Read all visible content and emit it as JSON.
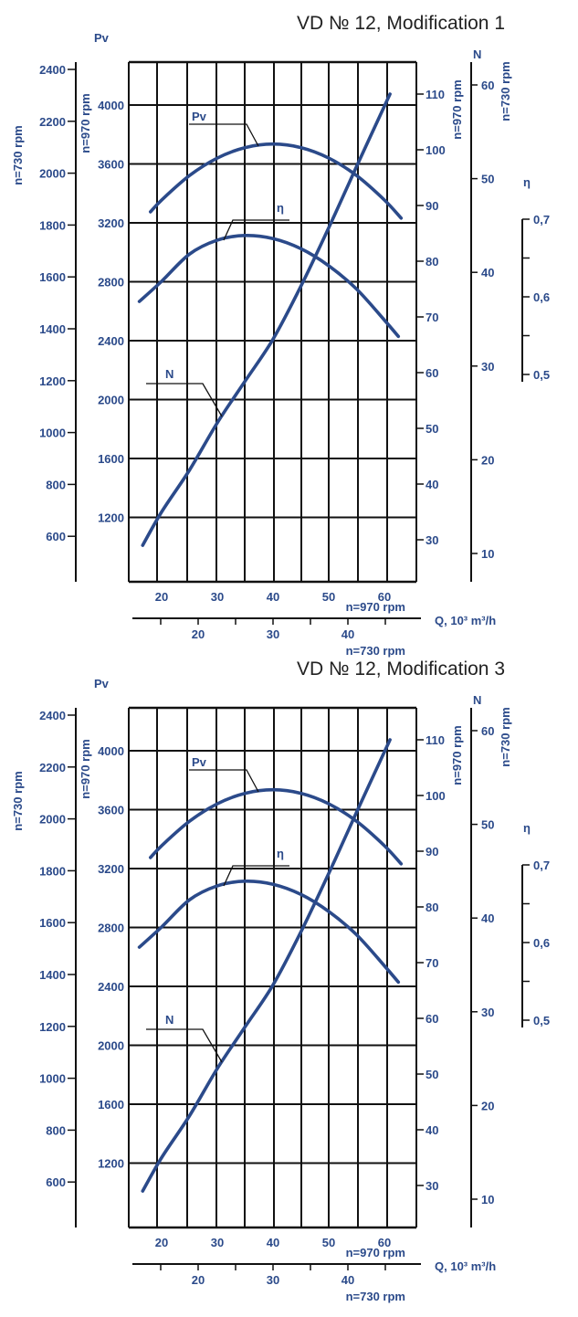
{
  "colors": {
    "curve": "#2b4a8a",
    "grid": "#111111",
    "label": "#2b4a8a"
  },
  "chart_data": [
    {
      "type": "line",
      "title": "VD  № 12, Modification 1",
      "xlabel": "Q, 10³ m³/h",
      "x_axes": [
        {
          "name": "n=970 rpm",
          "ticks": [
            20,
            30,
            40,
            50,
            60
          ]
        },
        {
          "name": "n=730 rpm",
          "ticks": [
            20,
            30,
            40
          ]
        }
      ],
      "y_axes": {
        "pv_730": {
          "label": "n=730 rpm",
          "title": "Pv",
          "ticks": [
            2400,
            2200,
            2000,
            1800,
            1600,
            1400,
            1200,
            1000,
            800,
            600
          ]
        },
        "pv_970": {
          "label": "n=970 rpm",
          "ticks": [
            4000,
            3600,
            3200,
            2800,
            2400,
            2000,
            1600,
            1200
          ]
        },
        "n_970": {
          "label": "n=970 rpm",
          "ticks": [
            110,
            100,
            90,
            80,
            70,
            60,
            50,
            40,
            30
          ]
        },
        "n_730": {
          "label": "n=730 rpm",
          "title": "N",
          "ticks": [
            60,
            50,
            40,
            30,
            20,
            10
          ]
        },
        "eta": {
          "title": "η",
          "ticks": [
            "0,7",
            "0,6",
            "0,5"
          ],
          "range": [
            0.5,
            0.7
          ]
        }
      },
      "series": [
        {
          "name": "Pv",
          "axis": "pv_970",
          "x": [
            18,
            20,
            25,
            30,
            35,
            40,
            45,
            50,
            55,
            60,
            63
          ],
          "values": [
            3275,
            3355,
            3521,
            3640,
            3711,
            3735,
            3711,
            3640,
            3521,
            3355,
            3232
          ]
        },
        {
          "name": "η",
          "axis": "eta",
          "x": [
            16,
            20,
            25,
            30,
            35,
            40,
            45,
            50,
            55,
            60,
            62.5
          ],
          "values": [
            0.594,
            0.62,
            0.655,
            0.673,
            0.679,
            0.675,
            0.662,
            0.64,
            0.61,
            0.57,
            0.549
          ]
        },
        {
          "name": "N",
          "axis": "n_970",
          "x": [
            16.6,
            20,
            25,
            30,
            35,
            40,
            45,
            50,
            55,
            61
          ],
          "values": [
            29,
            35,
            42.5,
            51,
            58.5,
            66,
            75.5,
            86,
            97,
            110
          ]
        }
      ]
    },
    {
      "type": "line",
      "title": "VD № 12, Modification 3",
      "xlabel": "Q, 10³ m³/h",
      "x_axes": [
        {
          "name": "n=970 rpm",
          "ticks": [
            20,
            30,
            40,
            50,
            60
          ]
        },
        {
          "name": "n=730 rpm",
          "ticks": [
            20,
            30,
            40
          ]
        }
      ],
      "y_axes": {
        "pv_730": {
          "label": "n=730 rpm",
          "title": "Pv",
          "ticks": [
            2400,
            2200,
            2000,
            1800,
            1600,
            1400,
            1200,
            1000,
            800,
            600
          ]
        },
        "pv_970": {
          "label": "n=970 rpm",
          "ticks": [
            4000,
            3600,
            3200,
            2800,
            2400,
            2000,
            1600,
            1200
          ]
        },
        "n_970": {
          "label": "n=970 rpm",
          "ticks": [
            110,
            100,
            90,
            80,
            70,
            60,
            50,
            40,
            30
          ]
        },
        "n_730": {
          "label": "n=730 rpm",
          "title": "N",
          "ticks": [
            60,
            50,
            40,
            30,
            20,
            10
          ]
        },
        "eta": {
          "title": "η",
          "ticks": [
            "0,7",
            "0,6",
            "0,5"
          ],
          "range": [
            0.5,
            0.7
          ]
        }
      },
      "series": [
        {
          "name": "Pv",
          "axis": "pv_970",
          "x": [
            18,
            20,
            25,
            30,
            35,
            40,
            45,
            50,
            55,
            60,
            63
          ],
          "values": [
            3275,
            3355,
            3521,
            3640,
            3711,
            3735,
            3711,
            3640,
            3521,
            3355,
            3232
          ]
        },
        {
          "name": "η",
          "axis": "eta",
          "x": [
            16,
            20,
            25,
            30,
            35,
            40,
            45,
            50,
            55,
            60,
            62.5
          ],
          "values": [
            0.594,
            0.62,
            0.655,
            0.673,
            0.679,
            0.675,
            0.662,
            0.64,
            0.61,
            0.57,
            0.549
          ]
        },
        {
          "name": "N",
          "axis": "n_970",
          "x": [
            16.6,
            20,
            25,
            30,
            35,
            40,
            45,
            50,
            55,
            61
          ],
          "values": [
            29,
            35,
            42.5,
            51,
            58.5,
            66,
            75.5,
            86,
            97,
            110
          ]
        }
      ]
    }
  ]
}
